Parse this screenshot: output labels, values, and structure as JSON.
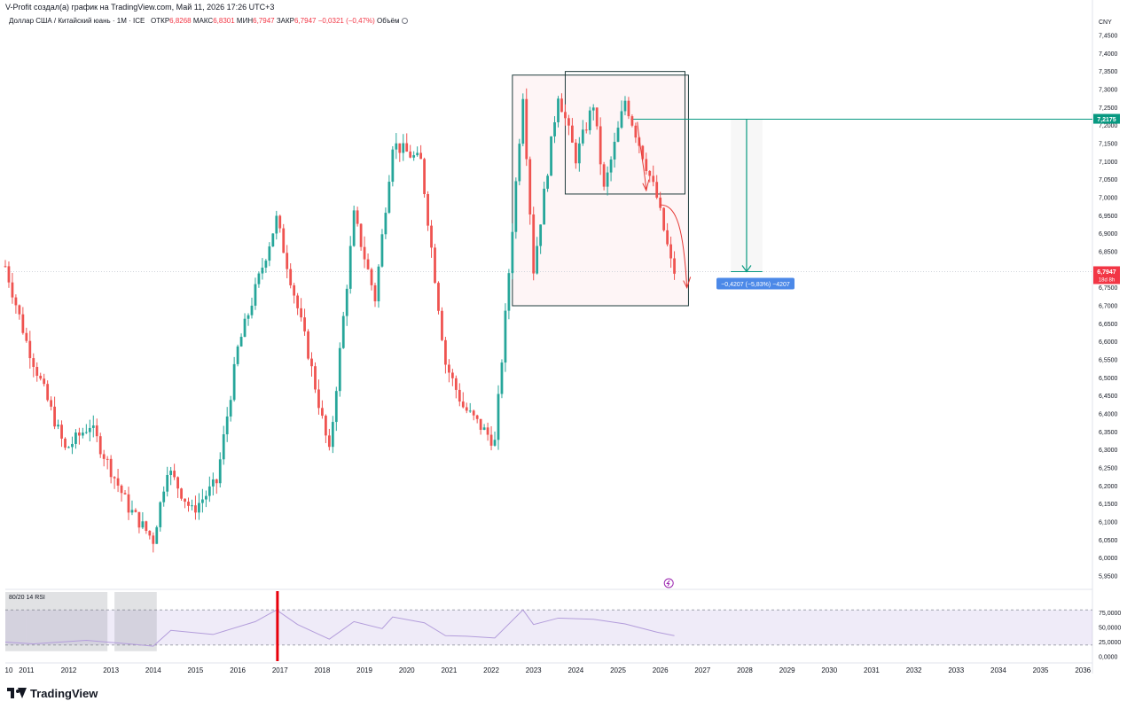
{
  "header": {
    "author_line": "V-Profit создал(а) график на TradingView.com, Май 11, 2026 17:26 UTC+3"
  },
  "legend": {
    "symbol": "Доллар США / Китайский юань · 1М · ICE",
    "open_label": "ОТКР",
    "open": "6,8268",
    "high_label": "МАКС",
    "high": "6,8301",
    "low_label": "МИН",
    "low": "6,7947",
    "close_label": "ЗАКР",
    "close": "6,7947",
    "change": "−0,0321 (−0,47%)",
    "volume_label": "Объём"
  },
  "price_axis": {
    "currency": "CNY",
    "labels": [
      "7,4500",
      "7,4000",
      "7,3500",
      "7,3000",
      "7,2500",
      "7,2000",
      "7,1500",
      "7,1000",
      "7,0500",
      "7,0000",
      "6,9500",
      "6,9000",
      "6,8500",
      "6,8000",
      "6,7500",
      "6,7000",
      "6,6500",
      "6,6000",
      "6,5500",
      "6,5000",
      "6,4500",
      "6,4000",
      "6,3500",
      "6,3000",
      "6,2500",
      "6,2000",
      "6,1500",
      "6,1000",
      "6,0500",
      "6,0000",
      "5,9500"
    ],
    "target_badge": "7,2175",
    "price_badge": "6,7947",
    "countdown_badge": "18d 8h"
  },
  "measure": {
    "label": "−0,4207 (−5,83%) −4207"
  },
  "time_axis": {
    "labels": [
      "10",
      "2011",
      "2012",
      "2013",
      "2014",
      "2015",
      "2016",
      "2017",
      "2018",
      "2019",
      "2020",
      "2021",
      "2022",
      "2023",
      "2024",
      "2025",
      "2026",
      "2027",
      "2028",
      "2029",
      "2030",
      "2031",
      "2032",
      "2033",
      "2034",
      "2035",
      "2036"
    ]
  },
  "rsi": {
    "label": "80/20 14 RSI",
    "axis_labels": [
      "75,0000",
      "50,0000",
      "25,0000",
      "0,0000"
    ]
  },
  "footer": {
    "brand": "TradingView"
  },
  "colors": {
    "up": "#26a69a",
    "down": "#ef5350",
    "accent_green": "#089981",
    "price_red": "#f23645",
    "measure_blue": "#2962ff",
    "rsi_purple": "#7e57c2",
    "event_red": "#e8000b"
  },
  "chart_data": {
    "type": "candlestick",
    "interval": "1M",
    "x_range": [
      "2010-07",
      "2036"
    ],
    "y_range": [
      5.95,
      7.45
    ],
    "anchors": [
      {
        "t": "2010-07",
        "v": 6.81
      },
      {
        "t": "2011-01",
        "v": 6.6
      },
      {
        "t": "2011-12",
        "v": 6.3
      },
      {
        "t": "2012-07",
        "v": 6.37
      },
      {
        "t": "2013-06",
        "v": 6.14
      },
      {
        "t": "2014-01",
        "v": 6.05
      },
      {
        "t": "2014-05",
        "v": 6.25
      },
      {
        "t": "2014-12",
        "v": 6.13
      },
      {
        "t": "2015-07",
        "v": 6.21
      },
      {
        "t": "2016-01",
        "v": 6.58
      },
      {
        "t": "2016-12",
        "v": 6.94
      },
      {
        "t": "2017-09",
        "v": 6.57
      },
      {
        "t": "2018-03",
        "v": 6.29
      },
      {
        "t": "2018-10",
        "v": 6.95
      },
      {
        "t": "2019-04",
        "v": 6.72
      },
      {
        "t": "2019-09",
        "v": 7.15
      },
      {
        "t": "2020-05",
        "v": 7.1
      },
      {
        "t": "2020-12",
        "v": 6.54
      },
      {
        "t": "2021-05",
        "v": 6.42
      },
      {
        "t": "2022-02",
        "v": 6.32
      },
      {
        "t": "2022-05",
        "v": 6.67
      },
      {
        "t": "2022-10",
        "v": 7.29
      },
      {
        "t": "2023-01",
        "v": 6.8
      },
      {
        "t": "2023-08",
        "v": 7.29
      },
      {
        "t": "2024-01",
        "v": 7.11
      },
      {
        "t": "2024-06",
        "v": 7.26
      },
      {
        "t": "2024-09",
        "v": 7.02
      },
      {
        "t": "2025-03",
        "v": 7.27
      },
      {
        "t": "2025-06",
        "v": 7.18
      },
      {
        "t": "2025-12",
        "v": 7.0
      },
      {
        "t": "2026-04",
        "v": 6.82
      },
      {
        "t": "2026-05",
        "v": 6.7947
      }
    ],
    "horizontal_line": 7.2175,
    "last_close": 6.7947,
    "measure": {
      "from": 7.2175,
      "to": 6.7947,
      "t_from": "2027-09",
      "t_to": "2028-06"
    },
    "boxes": [
      {
        "t_from": "2022-07",
        "t_to": "2026-09",
        "v_top": 7.34,
        "v_bottom": 6.7
      },
      {
        "t_from": "2023-10",
        "t_to": "2026-08",
        "v_top": 7.35,
        "v_bottom": 7.01
      }
    ],
    "rsi": {
      "y_range": [
        0,
        100
      ],
      "bands": [
        20,
        80
      ],
      "points": [
        {
          "t": "2010-07",
          "v": 25
        },
        {
          "t": "2011-03",
          "v": 22
        },
        {
          "t": "2012-06",
          "v": 28
        },
        {
          "t": "2013-06",
          "v": 22
        },
        {
          "t": "2014-01",
          "v": 18
        },
        {
          "t": "2014-06",
          "v": 45
        },
        {
          "t": "2015-06",
          "v": 38
        },
        {
          "t": "2016-06",
          "v": 60
        },
        {
          "t": "2016-12",
          "v": 80
        },
        {
          "t": "2017-06",
          "v": 55
        },
        {
          "t": "2018-03",
          "v": 30
        },
        {
          "t": "2018-10",
          "v": 60
        },
        {
          "t": "2019-06",
          "v": 48
        },
        {
          "t": "2019-09",
          "v": 68
        },
        {
          "t": "2020-06",
          "v": 58
        },
        {
          "t": "2020-12",
          "v": 36
        },
        {
          "t": "2021-06",
          "v": 35
        },
        {
          "t": "2022-02",
          "v": 32
        },
        {
          "t": "2022-10",
          "v": 80
        },
        {
          "t": "2023-01",
          "v": 55
        },
        {
          "t": "2023-08",
          "v": 66
        },
        {
          "t": "2024-06",
          "v": 64
        },
        {
          "t": "2025-03",
          "v": 56
        },
        {
          "t": "2025-12",
          "v": 42
        },
        {
          "t": "2026-05",
          "v": 36
        }
      ]
    }
  }
}
